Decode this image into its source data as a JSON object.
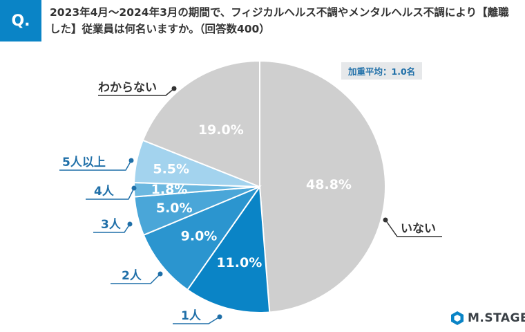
{
  "header": {
    "badge": "Q.",
    "question": "2023年4月～2024年3月の期間で、フィジカルヘルス不調やメンタルヘルス不調により【離職した】従業員は何名いますか。（回答数400）"
  },
  "note": "加重平均：1.0名",
  "brand": {
    "name": "M.STAGE"
  },
  "chart_data": {
    "type": "pie",
    "title": "",
    "start": "12 o'clock",
    "direction": "clockwise",
    "slices": [
      {
        "label": "いない",
        "value": 48.8,
        "display": "48.8%",
        "color": "#cfcfcf",
        "text_color": "#ffffff",
        "label_color": "#333333"
      },
      {
        "label": "1人",
        "value": 11.0,
        "display": "11.0%",
        "color": "#0a84c6",
        "text_color": "#ffffff",
        "label_color": "#1f6fa8"
      },
      {
        "label": "2人",
        "value": 9.0,
        "display": "9.0%",
        "color": "#2b95cf",
        "text_color": "#ffffff",
        "label_color": "#1f6fa8"
      },
      {
        "label": "3人",
        "value": 5.0,
        "display": "5.0%",
        "color": "#4aa6d8",
        "text_color": "#ffffff",
        "label_color": "#1f6fa8"
      },
      {
        "label": "4人",
        "value": 1.8,
        "display": "1.8%",
        "color": "#6cb8e0",
        "text_color": "#ffffff",
        "label_color": "#1f6fa8"
      },
      {
        "label": "5人以上",
        "value": 5.5,
        "display": "5.5%",
        "color": "#a3d3ee",
        "text_color": "#ffffff",
        "label_color": "#1f6fa8"
      },
      {
        "label": "わからない",
        "value": 19.0,
        "display": "19.0%",
        "color": "#cfcfcf",
        "text_color": "#ffffff",
        "label_color": "#333333"
      }
    ]
  }
}
